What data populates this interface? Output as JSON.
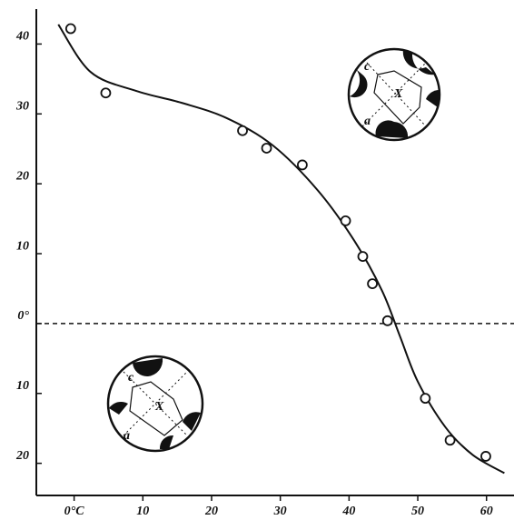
{
  "chart_data": {
    "type": "scatter",
    "xlim": [
      -5.5,
      64
    ],
    "ylim": [
      -24.6,
      45
    ],
    "xticks": [
      {
        "value": 0,
        "label": "0°C"
      },
      10,
      20,
      30,
      40,
      50,
      60
    ],
    "yticks": [
      40,
      30,
      20,
      10,
      {
        "value": 0,
        "label": "0°"
      },
      {
        "value": -10,
        "label": "10"
      },
      {
        "value": -20,
        "label": "20"
      }
    ],
    "hline": 0,
    "points": {
      "x": [
        -0.5,
        4.6,
        24.5,
        28,
        33.2,
        39.5,
        42,
        43.4,
        45.6,
        51.1,
        54.7,
        59.9
      ],
      "y": [
        42.2,
        33,
        27.6,
        25.1,
        22.7,
        14.7,
        9.6,
        5.7,
        0.4,
        -10.7,
        -16.7,
        -19
      ]
    },
    "curve": {
      "x": [
        -2.3,
        2.4,
        9,
        15.6,
        22.2,
        28.9,
        35.5,
        40.8,
        44.8,
        47.4,
        50,
        54,
        58,
        62.6
      ],
      "y": [
        42.8,
        36,
        33.3,
        31.6,
        29.4,
        25.5,
        19,
        11.8,
        4.7,
        -1.8,
        -8.3,
        -14.8,
        -18.8,
        -21.4
      ]
    },
    "insets": [
      {
        "labels": [
          "c",
          "a",
          "X"
        ]
      },
      {
        "labels": [
          "c",
          "a",
          "X"
        ]
      }
    ]
  }
}
